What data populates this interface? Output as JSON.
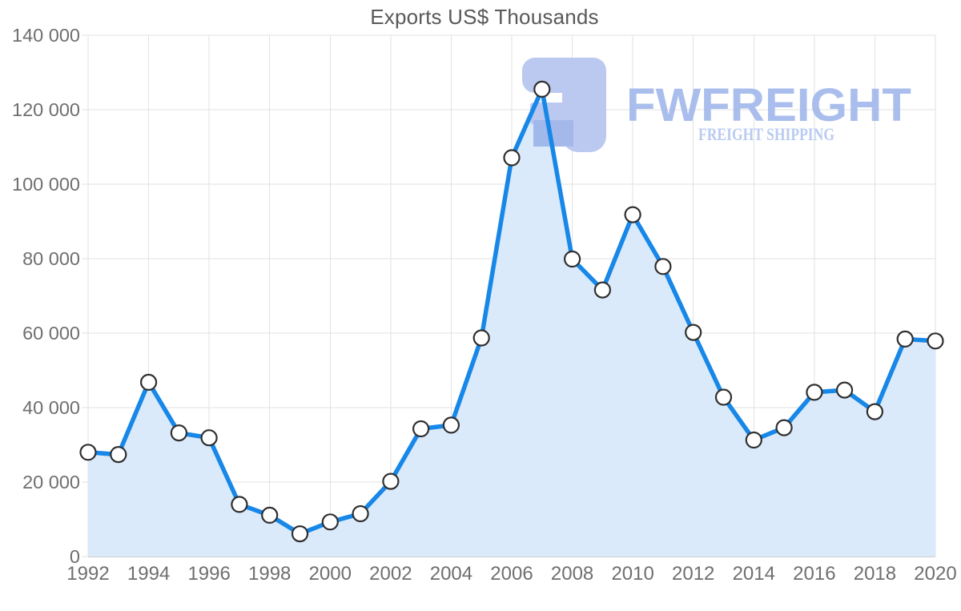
{
  "title": "Exports US$ Thousands",
  "watermark": {
    "brand": "FWFREIGHT",
    "tagline": "FREIGHT SHIPPING",
    "brand_color": "#a3b9ec",
    "tagline_color": "#b4c7f1",
    "logo_color": "#b6c5ef",
    "logo_accent_color": "#9db4e9"
  },
  "chart_data": {
    "type": "area",
    "title": "Exports US$ Thousands",
    "xlabel": "",
    "ylabel": "",
    "x": [
      1992,
      1993,
      1994,
      1995,
      1996,
      1997,
      1998,
      1999,
      2000,
      2001,
      2002,
      2003,
      2004,
      2005,
      2006,
      2007,
      2008,
      2009,
      2010,
      2011,
      2012,
      2013,
      2014,
      2015,
      2016,
      2017,
      2018,
      2019,
      2020
    ],
    "values": [
      28000,
      27400,
      46800,
      33200,
      31900,
      14000,
      11100,
      6100,
      9300,
      11500,
      20200,
      34300,
      35300,
      58700,
      107100,
      125500,
      79900,
      71600,
      91800,
      77900,
      60200,
      42800,
      31300,
      34600,
      44100,
      44700,
      38900,
      58400,
      57900
    ],
    "xlim": [
      1992,
      2020
    ],
    "ylim": [
      0,
      140000
    ],
    "xtick_labels": [
      "1992",
      "1994",
      "1996",
      "1998",
      "2000",
      "2002",
      "2004",
      "2006",
      "2008",
      "2010",
      "2012",
      "2014",
      "2016",
      "2018",
      "2020"
    ],
    "xticks": [
      1992,
      1994,
      1996,
      1998,
      2000,
      2002,
      2004,
      2006,
      2008,
      2010,
      2012,
      2014,
      2016,
      2018,
      2020
    ],
    "ytick_labels": [
      "0",
      "20 000",
      "40 000",
      "60 000",
      "80 000",
      "100 000",
      "120 000",
      "140 000"
    ],
    "yticks": [
      0,
      20000,
      40000,
      60000,
      80000,
      100000,
      120000,
      140000
    ],
    "grid": true,
    "legend": false,
    "line_color": "#1787e8",
    "fill_color": "#daeafa",
    "marker_fill": "#ffffff",
    "marker_stroke": "#2f2f2f",
    "grid_color": "#e2e2e2",
    "axis_line_color": "#cfcfcf",
    "axis_text_color": "#6f6f6f",
    "title_color": "#595959"
  }
}
